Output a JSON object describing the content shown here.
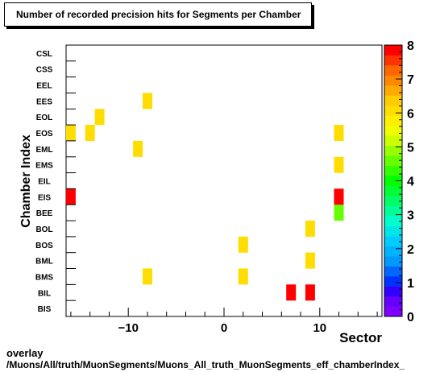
{
  "chart_data": {
    "type": "heatmap",
    "title": "Number of recorded precision hits for Segments per Chamber",
    "xlabel": "Sector",
    "ylabel": "Chamber Index",
    "xlim": [
      -16.5,
      16.5
    ],
    "x_ticks": [
      -10,
      0,
      10
    ],
    "y_categories": [
      "BIS",
      "BIL",
      "BMS",
      "BML",
      "BOS",
      "BOL",
      "BEE",
      "EIS",
      "EIL",
      "EMS",
      "EML",
      "EOS",
      "EOL",
      "EES",
      "EEL",
      "CSS",
      "CSL"
    ],
    "zlim": [
      0,
      8
    ],
    "z_ticks": [
      0,
      1,
      2,
      3,
      4,
      5,
      6,
      7,
      8
    ],
    "cells": [
      {
        "x": 7,
        "y": "BIL",
        "z": 8
      },
      {
        "x": 9,
        "y": "BIL",
        "z": 8
      },
      {
        "x": -8,
        "y": "BMS",
        "z": 6
      },
      {
        "x": 2,
        "y": "BMS",
        "z": 6
      },
      {
        "x": 9,
        "y": "BML",
        "z": 6
      },
      {
        "x": 2,
        "y": "BOS",
        "z": 6
      },
      {
        "x": 9,
        "y": "BOL",
        "z": 6
      },
      {
        "x": 12,
        "y": "BEE",
        "z": 4.5
      },
      {
        "x": -16,
        "y": "EIS",
        "z": 8
      },
      {
        "x": 12,
        "y": "EIS",
        "z": 8
      },
      {
        "x": 12,
        "y": "EMS",
        "z": 6
      },
      {
        "x": -9,
        "y": "EML",
        "z": 6
      },
      {
        "x": -16,
        "y": "EOS",
        "z": 6
      },
      {
        "x": -14,
        "y": "EOS",
        "z": 6
      },
      {
        "x": 12,
        "y": "EOS",
        "z": 6
      },
      {
        "x": -13,
        "y": "EOL",
        "z": 6
      },
      {
        "x": -8,
        "y": "EES",
        "z": 6
      }
    ],
    "palette": [
      "#7f00ff",
      "#6600ff",
      "#3300ff",
      "#0033ff",
      "#0066ff",
      "#0099ff",
      "#00b3ff",
      "#00ccff",
      "#00e6e6",
      "#00ffcc",
      "#00ff99",
      "#00ff66",
      "#00ff33",
      "#00ff00",
      "#33ff00",
      "#66ff00",
      "#99ff00",
      "#ccff00",
      "#eeff00",
      "#ffee00",
      "#ffdd00",
      "#ffcc00",
      "#ffaa00",
      "#ff8800",
      "#ff6600",
      "#ff3300",
      "#ff0000"
    ]
  },
  "caption": {
    "line1": "overlay",
    "line2": "/Muons/All/truth/MuonSegments/Muons_All_truth_MuonSegments_eff_chamberIndex_"
  }
}
